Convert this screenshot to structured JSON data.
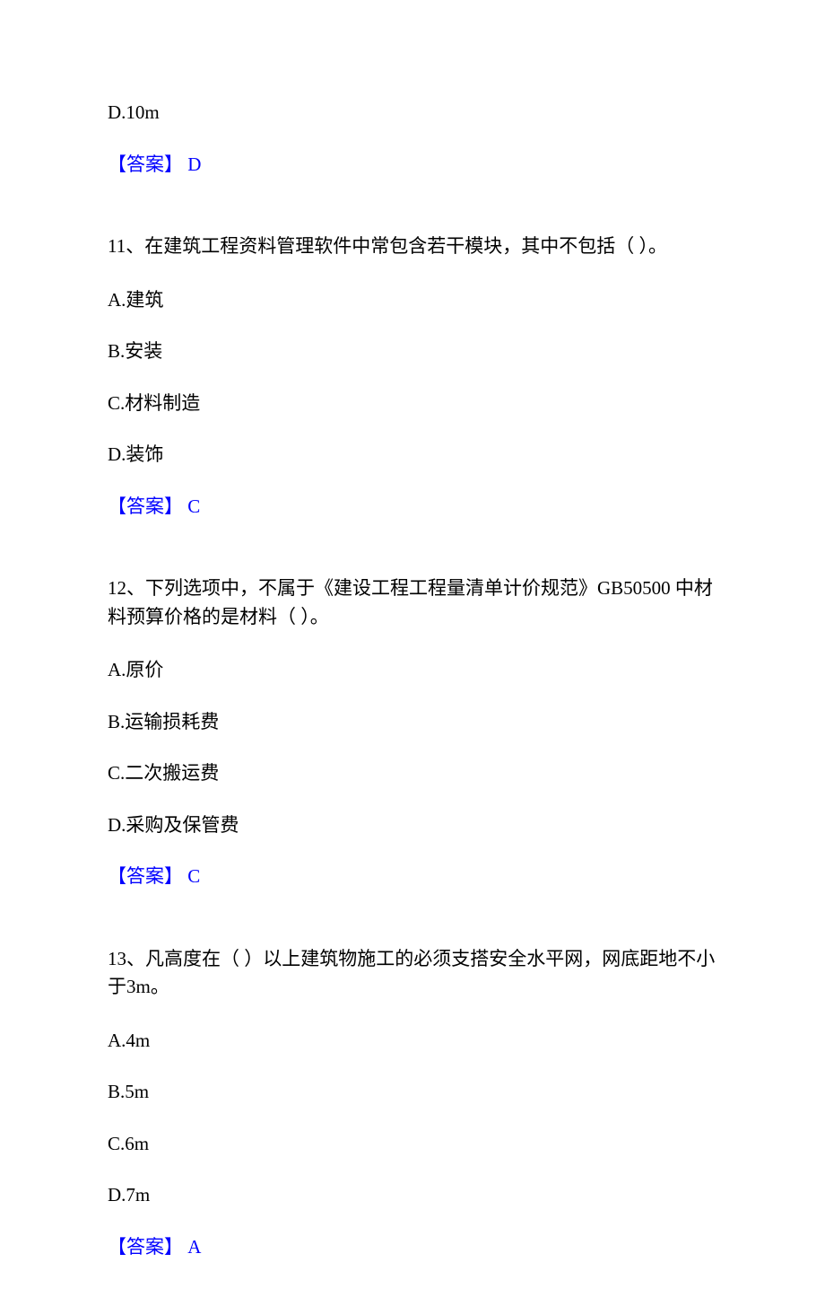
{
  "colors": {
    "text": "#000000",
    "answer": "#0000ff",
    "background": "#ffffff"
  },
  "typography": {
    "font_family": "SimSun",
    "font_size_pt": 16,
    "line_height": 1.5
  },
  "q10_tail": {
    "option_d": "D.10m",
    "answer": "【答案】 D"
  },
  "q11": {
    "stem": "11、在建筑工程资料管理软件中常包含若干模块，其中不包括（ ）。",
    "option_a": "A.建筑",
    "option_b": "B.安装",
    "option_c": "C.材料制造",
    "option_d": "D.装饰",
    "answer": "【答案】 C"
  },
  "q12": {
    "stem": "12、下列选项中，不属于《建设工程工程量清单计价规范》GB50500 中材料预算价格的是材料（ ）。",
    "option_a": "A.原价",
    "option_b": "B.运输损耗费",
    "option_c": "C.二次搬运费",
    "option_d": "D.采购及保管费",
    "answer": "【答案】 C"
  },
  "q13": {
    "stem": "13、凡高度在（ ）以上建筑物施工的必须支搭安全水平网，网底距地不小于3m。",
    "option_a": "A.4m",
    "option_b": "B.5m",
    "option_c": "C.6m",
    "option_d": "D.7m",
    "answer": "【答案】 A"
  }
}
